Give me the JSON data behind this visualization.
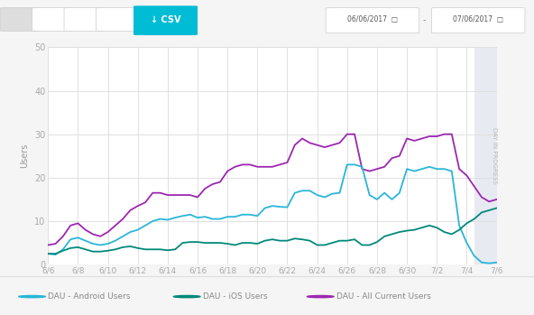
{
  "ylabel": "Users",
  "ylim": [
    0,
    50
  ],
  "yticks": [
    0,
    10,
    20,
    30,
    40,
    50
  ],
  "xlabels": [
    "6/6",
    "6/8",
    "6/10",
    "6/12",
    "6/14",
    "6/16",
    "6/18",
    "6/20",
    "6/22",
    "6/24",
    "6/26",
    "6/28",
    "6/30",
    "7/2",
    "7/4",
    "7/6"
  ],
  "background_color": "#f5f5f5",
  "plot_bg_color": "#ffffff",
  "header_bg_color": "#f5f5f5",
  "grid_color": "#e0e0e0",
  "shaded_region_color": "#e8eaf2",
  "android_color": "#29b6d8",
  "ios_color": "#00897b",
  "all_users_color": "#9c27b0",
  "android_label": "DAU - Android Users",
  "ios_label": "DAU - iOS Users",
  "all_users_label": "DAU - All Current Users",
  "date_range": "06/06/2017  -  07/06/2017",
  "csv_color": "#00bcd4",
  "android_data": [
    2.5,
    2.3,
    3.5,
    5.8,
    6.2,
    5.5,
    4.8,
    4.5,
    4.8,
    5.5,
    6.5,
    7.5,
    8.0,
    9.0,
    10.0,
    10.5,
    10.3,
    10.8,
    11.2,
    11.5,
    10.8,
    11.0,
    10.5,
    10.5,
    11.0,
    11.0,
    11.5,
    11.5,
    11.2,
    13.0,
    13.5,
    13.3,
    13.2,
    16.5,
    17.0,
    17.0,
    16.0,
    15.5,
    16.3,
    16.5,
    23.0,
    23.0,
    22.5,
    16.0,
    15.0,
    16.5,
    15.0,
    16.5,
    22.0,
    21.5,
    22.0,
    22.5,
    22.0,
    22.0,
    21.5,
    9.0,
    5.0,
    2.0,
    0.5,
    0.3,
    0.5
  ],
  "ios_data": [
    2.5,
    2.5,
    3.2,
    3.8,
    4.0,
    3.5,
    3.0,
    3.0,
    3.2,
    3.5,
    4.0,
    4.2,
    3.8,
    3.5,
    3.5,
    3.5,
    3.3,
    3.5,
    5.0,
    5.2,
    5.2,
    5.0,
    5.0,
    5.0,
    4.8,
    4.5,
    5.0,
    5.0,
    4.8,
    5.5,
    5.8,
    5.5,
    5.5,
    6.0,
    5.8,
    5.5,
    4.5,
    4.5,
    5.0,
    5.5,
    5.5,
    5.8,
    4.5,
    4.5,
    5.2,
    6.5,
    7.0,
    7.5,
    7.8,
    8.0,
    8.5,
    9.0,
    8.5,
    7.5,
    7.0,
    8.0,
    9.5,
    10.5,
    12.0,
    12.5,
    13.0
  ],
  "all_users_data": [
    4.5,
    4.8,
    6.5,
    9.0,
    9.5,
    8.0,
    7.0,
    6.5,
    7.5,
    9.0,
    10.5,
    12.5,
    13.5,
    14.3,
    16.5,
    16.5,
    16.0,
    16.0,
    16.0,
    16.0,
    15.5,
    17.5,
    18.5,
    19.0,
    21.5,
    22.5,
    23.0,
    23.0,
    22.5,
    22.5,
    22.5,
    23.0,
    23.5,
    27.5,
    29.0,
    28.0,
    27.5,
    27.0,
    27.5,
    28.0,
    30.0,
    30.0,
    22.0,
    21.5,
    22.0,
    22.5,
    24.5,
    25.0,
    29.0,
    28.5,
    29.0,
    29.5,
    29.5,
    30.0,
    30.0,
    22.0,
    20.5,
    18.0,
    15.5,
    14.5,
    15.0
  ]
}
